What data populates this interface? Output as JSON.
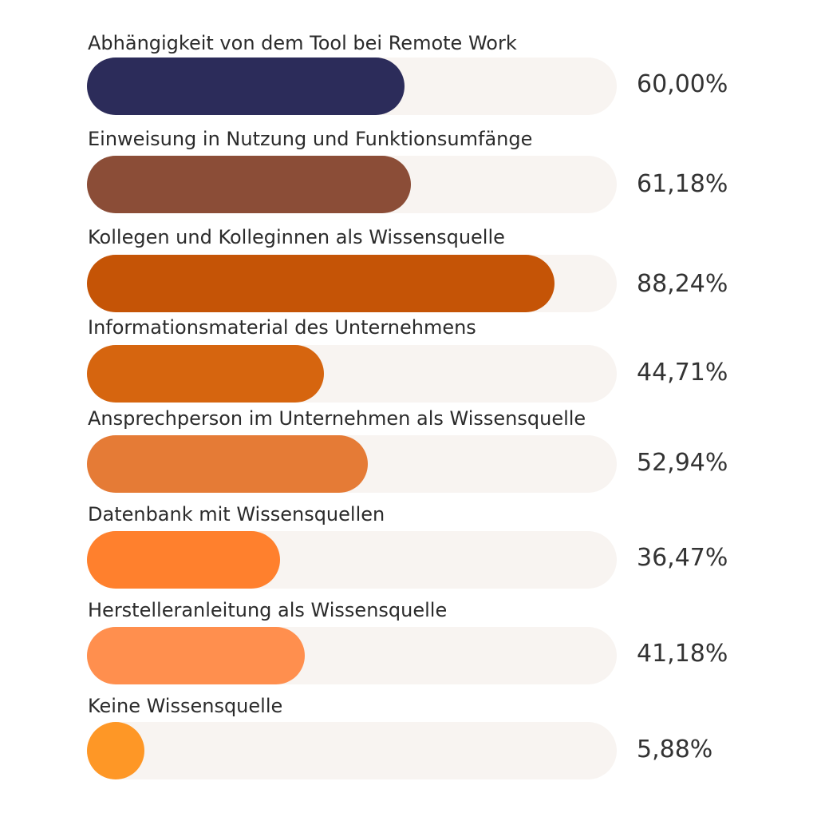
{
  "chart_data": {
    "type": "bar",
    "orientation": "horizontal",
    "title": "",
    "xlabel": "",
    "ylabel": "",
    "xlim": [
      0,
      100
    ],
    "grid": false,
    "legend": "none",
    "categories": [
      "Abhängigkeit von dem Tool bei Remote Work",
      "Einweisung in Nutzung und Funktionsumfänge",
      "Kollegen und Kolleginnen als Wissensquelle",
      "Informationsmaterial des Unternehmens",
      "Ansprechperson im Unternehmen als Wissensquelle",
      "Datenbank mit Wissensquellen",
      "Herstelleranleitung als Wissensquelle",
      "Keine Wissensquelle"
    ],
    "values": [
      60.0,
      61.18,
      88.24,
      44.71,
      52.94,
      36.47,
      41.18,
      5.88
    ],
    "value_labels": [
      "60,00%",
      "61,18%",
      "88,24%",
      "44,71%",
      "52,94%",
      "36,47%",
      "41,18%",
      "5,88%"
    ],
    "colors": [
      "#2c2c5a",
      "#8b4d37",
      "#c55406",
      "#d6650f",
      "#e57b36",
      "#ff802d",
      "#ff8f4e",
      "#fe9726"
    ],
    "track_color": "#f8f4f1"
  }
}
